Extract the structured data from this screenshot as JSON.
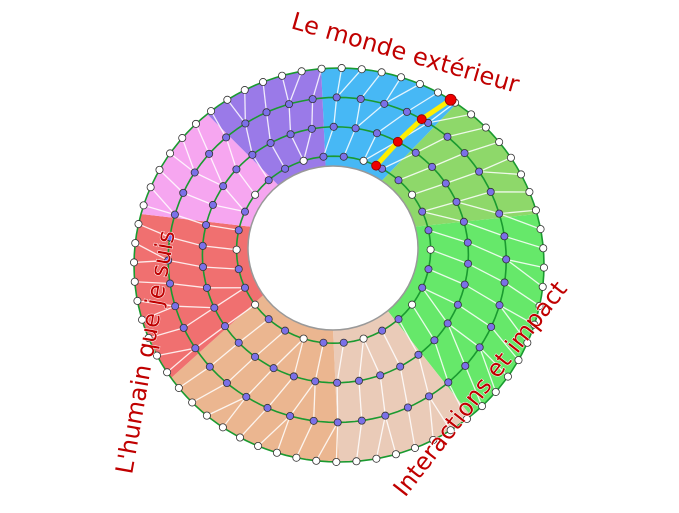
{
  "labels": {
    "top": "Le monde extérieur",
    "left": "L'humain que je suis",
    "right": "Interactions et impact"
  },
  "colors": {
    "sectors": [
      "#47b8f5",
      "#8ed86a",
      "#66e86a",
      "#eacbb8",
      "#ebb690",
      "#f07070",
      "#f6a6f0",
      "#9a7ae8"
    ],
    "ring_line": "#1a9a30",
    "node_fill": "#7b70e8",
    "node_outer": "#ffffff",
    "highlight_path": "#ffee00",
    "highlight_node": "#ee0000",
    "label": "#c00000"
  }
}
